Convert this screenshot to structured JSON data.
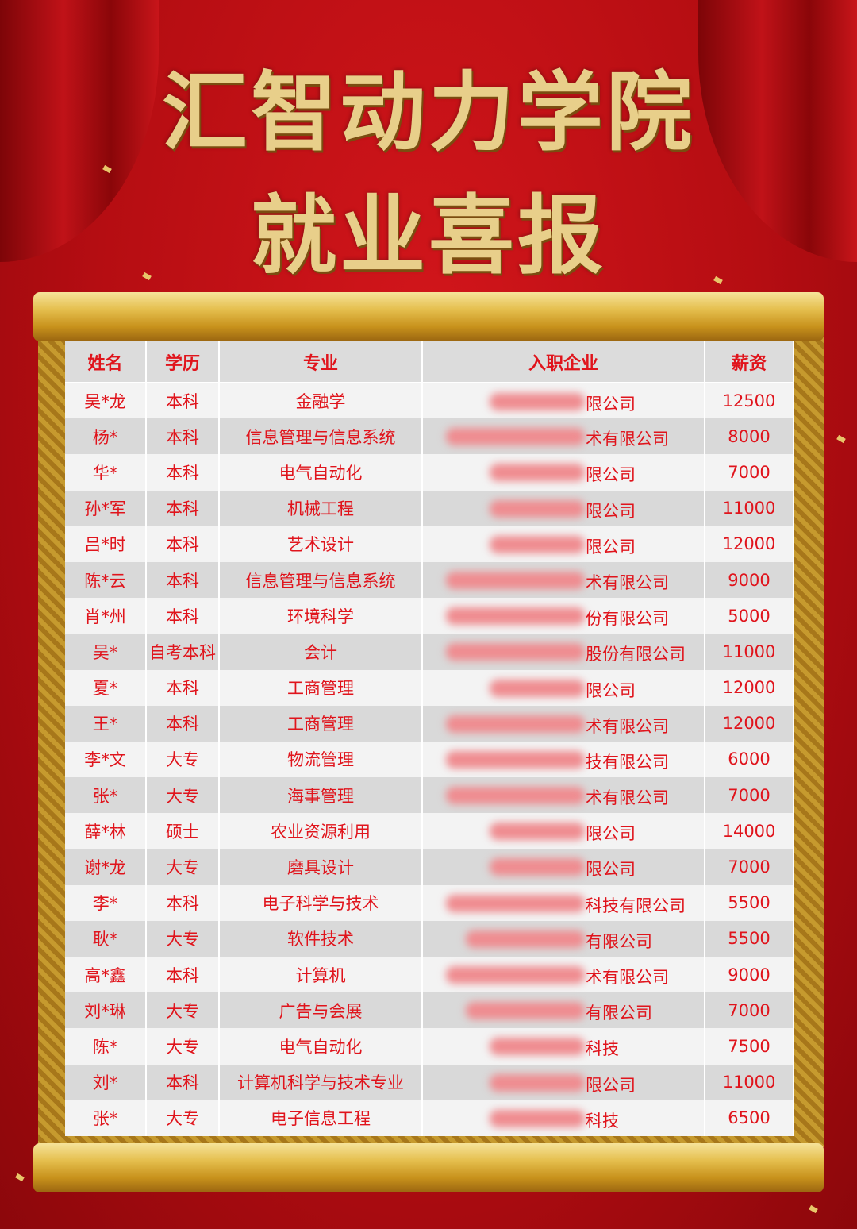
{
  "title_line1": "汇智动力学院",
  "title_line2": "就业喜报",
  "colors": {
    "background": "#c0121a",
    "text": "#e0141c",
    "gold": "#e5bf4e"
  },
  "table": {
    "headers": [
      "姓名",
      "学历",
      "专业",
      "入职企业",
      "薪资"
    ],
    "rows": [
      {
        "name": "吴*龙",
        "edu": "本科",
        "major": "金融学",
        "company_suffix": "限公司",
        "salary": "12500",
        "blur": "short"
      },
      {
        "name": "杨*",
        "edu": "本科",
        "major": "信息管理与信息系统",
        "company_suffix": "术有限公司",
        "salary": "8000",
        "blur": "long"
      },
      {
        "name": "华*",
        "edu": "本科",
        "major": "电气自动化",
        "company_suffix": "限公司",
        "salary": "7000",
        "blur": "short"
      },
      {
        "name": "孙*军",
        "edu": "本科",
        "major": "机械工程",
        "company_suffix": "限公司",
        "salary": "11000",
        "blur": "short"
      },
      {
        "name": "吕*时",
        "edu": "本科",
        "major": "艺术设计",
        "company_suffix": "限公司",
        "salary": "12000",
        "blur": "short"
      },
      {
        "name": "陈*云",
        "edu": "本科",
        "major": "信息管理与信息系统",
        "company_suffix": "术有限公司",
        "salary": "9000",
        "blur": "long"
      },
      {
        "name": "肖*州",
        "edu": "本科",
        "major": "环境科学",
        "company_suffix": "份有限公司",
        "salary": "5000",
        "blur": "long"
      },
      {
        "name": "吴*",
        "edu": "自考本科",
        "major": "会计",
        "company_suffix": "股份有限公司",
        "salary": "11000",
        "blur": "long"
      },
      {
        "name": "夏*",
        "edu": "本科",
        "major": "工商管理",
        "company_suffix": "限公司",
        "salary": "12000",
        "blur": "short"
      },
      {
        "name": "王*",
        "edu": "本科",
        "major": "工商管理",
        "company_suffix": "术有限公司",
        "salary": "12000",
        "blur": "long"
      },
      {
        "name": "李*文",
        "edu": "大专",
        "major": "物流管理",
        "company_suffix": "技有限公司",
        "salary": "6000",
        "blur": "long"
      },
      {
        "name": "张*",
        "edu": "大专",
        "major": "海事管理",
        "company_suffix": "术有限公司",
        "salary": "7000",
        "blur": "long"
      },
      {
        "name": "薛*林",
        "edu": "硕士",
        "major": "农业资源利用",
        "company_suffix": "限公司",
        "salary": "14000",
        "blur": "short"
      },
      {
        "name": "谢*龙",
        "edu": "大专",
        "major": "磨具设计",
        "company_suffix": "限公司",
        "salary": "7000",
        "blur": "short"
      },
      {
        "name": "李*",
        "edu": "本科",
        "major": "电子科学与技术",
        "company_suffix": "科技有限公司",
        "salary": "5500",
        "blur": "long"
      },
      {
        "name": "耿*",
        "edu": "大专",
        "major": "软件技术",
        "company_suffix": "有限公司",
        "salary": "5500",
        "blur": "medium"
      },
      {
        "name": "高*鑫",
        "edu": "本科",
        "major": "计算机",
        "company_suffix": "术有限公司",
        "salary": "9000",
        "blur": "long"
      },
      {
        "name": "刘*琳",
        "edu": "大专",
        "major": "广告与会展",
        "company_suffix": "有限公司",
        "salary": "7000",
        "blur": "medium"
      },
      {
        "name": "陈*",
        "edu": "大专",
        "major": "电气自动化",
        "company_suffix": "科技",
        "salary": "7500",
        "blur": "short"
      },
      {
        "name": "刘*",
        "edu": "本科",
        "major": "计算机科学与技术专业",
        "company_suffix": "限公司",
        "salary": "11000",
        "blur": "short"
      },
      {
        "name": "张*",
        "edu": "大专",
        "major": "电子信息工程",
        "company_suffix": "科技",
        "salary": "6500",
        "blur": "short"
      }
    ]
  }
}
